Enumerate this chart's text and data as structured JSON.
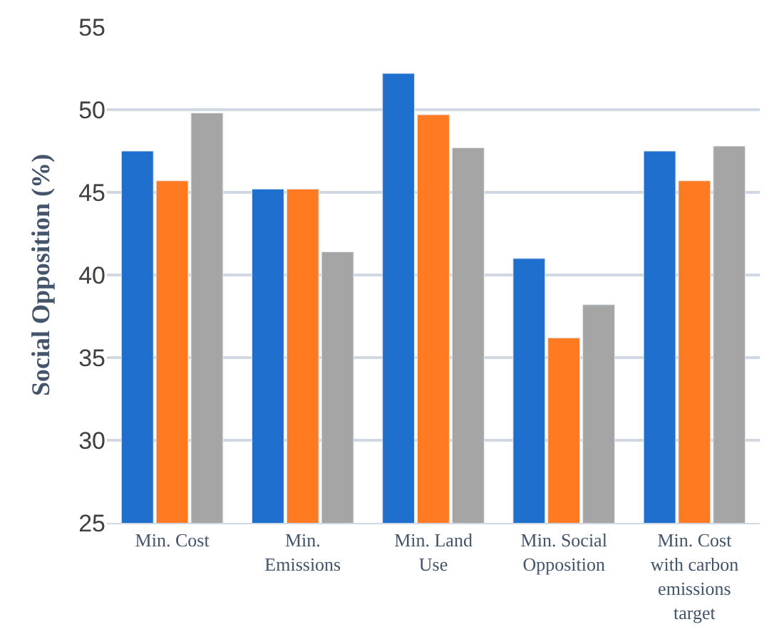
{
  "chart_data": {
    "type": "bar",
    "ylabel": "Social Opposition (%)",
    "categories": [
      "Min. Cost",
      "Min. Emissions",
      "Min. Land Use",
      "Min. Social Opposition",
      "Min. Cost with carbon emissions target"
    ],
    "series": [
      {
        "color": "#1f6fcf",
        "values": [
          47.5,
          45.2,
          52.2,
          41.0,
          47.5
        ]
      },
      {
        "color": "#ff7a20",
        "values": [
          45.7,
          45.2,
          49.7,
          36.2,
          45.7
        ]
      },
      {
        "color": "#a5a5a5",
        "values": [
          49.8,
          41.4,
          47.7,
          38.2,
          47.8
        ]
      }
    ],
    "ylim": [
      25,
      55
    ],
    "yticks": [
      25,
      30,
      35,
      40,
      45,
      50,
      55
    ],
    "grid": "y"
  }
}
